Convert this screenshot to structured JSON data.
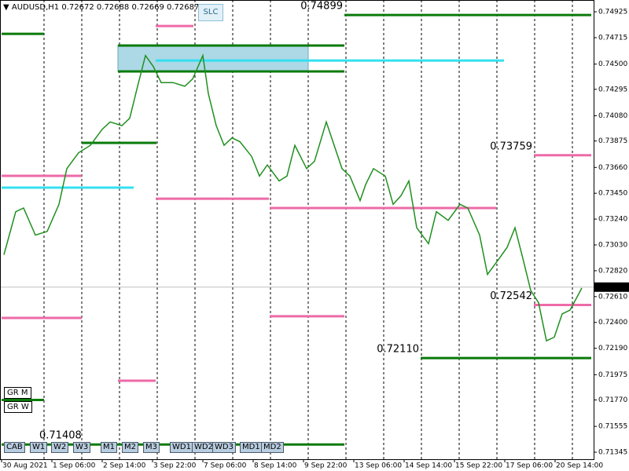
{
  "header": {
    "symbol": "AUDUSD,H1",
    "ohlc": [
      0.72672,
      0.72688,
      0.72669,
      0.72687
    ]
  },
  "buttons": {
    "top": "SLC",
    "side": [
      "GR M",
      "GR W"
    ],
    "bottom": [
      "CAB",
      "W1",
      "W2",
      "W3",
      "M1",
      "M2",
      "M3",
      "WD1",
      "WD2",
      "WD3",
      "MD1",
      "MD2"
    ]
  },
  "chart_data": {
    "type": "line",
    "color": "#1f8f1f",
    "x": [
      2.5,
      10,
      15,
      22.5,
      30,
      37.5,
      42.5,
      50,
      57.5,
      65,
      70,
      77.5,
      82.5,
      87.5,
      92.5,
      97.5,
      102.5,
      110,
      117.5,
      122.5,
      129,
      132.5,
      137.5,
      142.5,
      147.5,
      152.5,
      160,
      165,
      170,
      177.5,
      182.5,
      187.5,
      195,
      200,
      207.5,
      212.5,
      217.5,
      222.5,
      229,
      232.5,
      237.5,
      245,
      250,
      255,
      260,
      265,
      272.5,
      277.5,
      285,
      292.5,
      297.5,
      305,
      310,
      317.5,
      322.5,
      327.5,
      332.5,
      337.5,
      342.5,
      347.5,
      352.5,
      357.5,
      362.5,
      370
    ],
    "values": [
      0.7295,
      0.733,
      0.7333,
      0.7311,
      0.7314,
      0.7336,
      0.7365,
      0.7378,
      0.7384,
      0.7397,
      0.7403,
      0.74,
      0.7406,
      0.7432,
      0.7457,
      0.7448,
      0.7435,
      0.7435,
      0.7432,
      0.7438,
      0.7457,
      0.7426,
      0.74,
      0.7384,
      0.739,
      0.7387,
      0.7375,
      0.7359,
      0.7368,
      0.7355,
      0.7359,
      0.7384,
      0.7365,
      0.7371,
      0.7403,
      0.7384,
      0.7365,
      0.7359,
      0.7339,
      0.7352,
      0.7365,
      0.7359,
      0.7336,
      0.7343,
      0.7355,
      0.7317,
      0.7304,
      0.733,
      0.7323,
      0.7336,
      0.7333,
      0.7311,
      0.7279,
      0.7292,
      0.7301,
      0.7317,
      0.7292,
      0.7266,
      0.7256,
      0.7225,
      0.7228,
      0.7247,
      0.725,
      0.7268
    ],
    "xlim": [
      0,
      377.5
    ],
    "xticks": [
      {
        "value": 1,
        "label": "30 Aug 2021"
      },
      {
        "value": 33,
        "label": "1 Sep 06:00"
      },
      {
        "value": 65,
        "label": "2 Sep 14:00"
      },
      {
        "value": 97,
        "label": "3 Sep 22:00"
      },
      {
        "value": 129,
        "label": "7 Sep 06:00"
      },
      {
        "value": 161,
        "label": "8 Sep 14:00"
      },
      {
        "value": 193,
        "label": "9 Sep 22:00"
      },
      {
        "value": 225,
        "label": "13 Sep 06:00"
      },
      {
        "value": 257,
        "label": "14 Sep 14:00"
      },
      {
        "value": 289,
        "label": "15 Sep 22:00"
      },
      {
        "value": 321,
        "label": "17 Sep 06:00"
      },
      {
        "value": 353,
        "label": "20 Sep 14:00"
      }
    ],
    "ylim": [
      0.71288,
      0.75021
    ],
    "yticks": [
      0.74925,
      0.74715,
      {
        "value": 0.745,
        "label": "0.74500"
      },
      0.74295,
      {
        "value": 0.7408,
        "label": "0.74080"
      },
      0.73875,
      {
        "value": 0.7366,
        "label": "0.73660"
      },
      {
        "value": 0.7345,
        "label": "0.73450"
      },
      {
        "value": 0.7324,
        "label": "0.73240"
      },
      {
        "value": 0.7303,
        "label": "0.73030"
      },
      {
        "value": 0.7282,
        "label": "0.72820"
      },
      {
        "value": 0.7261,
        "label": "0.72610"
      },
      {
        "value": 0.724,
        "label": "0.72400"
      },
      {
        "value": 0.7219,
        "label": "0.72190"
      },
      0.71975,
      {
        "value": 0.7177,
        "label": "0.71770"
      },
      0.71555,
      0.71345
    ],
    "current_price": 0.72687,
    "zone": {
      "range": [
        0.7444,
        0.74651
      ],
      "x": [
        75,
        196
      ],
      "color": "#add8e6"
    },
    "levels": [
      {
        "value": 0.74746,
        "x": [
          1,
          28
        ],
        "color": "#0a7a0a"
      },
      {
        "value": 0.74651,
        "x": [
          75,
          219
        ],
        "color": "#0a7a0a"
      },
      {
        "value": 0.7444,
        "x": [
          75,
          219
        ],
        "color": "#0a7a0a"
      },
      {
        "value": 0.7386,
        "x": [
          52,
          99.5
        ],
        "color": "#0a7a0a"
      },
      {
        "value": 0.74899,
        "x": [
          219,
          376
        ],
        "color": "#0a7a0a",
        "label": "0.74899"
      },
      {
        "value": 0.7211,
        "x": [
          267.5,
          376
        ],
        "color": "#0a7a0a",
        "label": "0.72110"
      },
      {
        "value": 0.7177,
        "x": [
          1,
          28
        ],
        "color": "#0a7a0a"
      },
      {
        "value": 0.71408,
        "x": [
          1,
          219
        ],
        "color": "#0a7a0a",
        "label": "0.71408"
      },
      {
        "value": 0.7481,
        "x": [
          99,
          123
        ],
        "color": "#ee6aa7"
      },
      {
        "value": 0.73592,
        "x": [
          1,
          52
        ],
        "color": "#ee6aa7"
      },
      {
        "value": 0.73406,
        "x": [
          99,
          171
        ],
        "color": "#ee6aa7"
      },
      {
        "value": 0.7333,
        "x": [
          171.5,
          315.5
        ],
        "color": "#ee6aa7"
      },
      {
        "value": 0.72437,
        "x": [
          1,
          52
        ],
        "color": "#ee6aa7"
      },
      {
        "value": 0.7245,
        "x": [
          171.5,
          219
        ],
        "color": "#ee6aa7"
      },
      {
        "value": 0.71926,
        "x": [
          75,
          99
        ],
        "color": "#ee6aa7"
      },
      {
        "value": 0.73759,
        "x": [
          339.5,
          376
        ],
        "color": "#ee6aa7",
        "label": "0.73759"
      },
      {
        "value": 0.72542,
        "x": [
          339.5,
          376
        ],
        "color": "#ee6aa7",
        "label": "0.72542"
      },
      {
        "value": 0.73496,
        "x": [
          1,
          85
        ],
        "color": "#33e0f0"
      },
      {
        "value": 0.74529,
        "x": [
          99,
          320.5
        ],
        "color": "#33e0f0"
      }
    ]
  }
}
